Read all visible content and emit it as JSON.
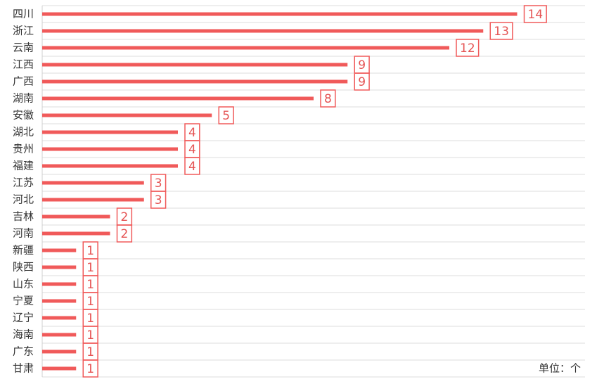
{
  "chart_data": {
    "type": "bar",
    "orientation": "horizontal",
    "categories": [
      "四川",
      "浙江",
      "云南",
      "江西",
      "广西",
      "湖南",
      "安徽",
      "湖北",
      "贵州",
      "福建",
      "江苏",
      "河北",
      "吉林",
      "河南",
      "新疆",
      "陕西",
      "山东",
      "宁夏",
      "辽宁",
      "海南",
      "广东",
      "甘肃"
    ],
    "values": [
      14,
      13,
      12,
      9,
      9,
      8,
      5,
      4,
      4,
      4,
      3,
      3,
      2,
      2,
      1,
      1,
      1,
      1,
      1,
      1,
      1,
      1
    ],
    "color": "#f05a5a",
    "xlim": [
      0,
      16
    ],
    "unit_label": "单位：个"
  }
}
